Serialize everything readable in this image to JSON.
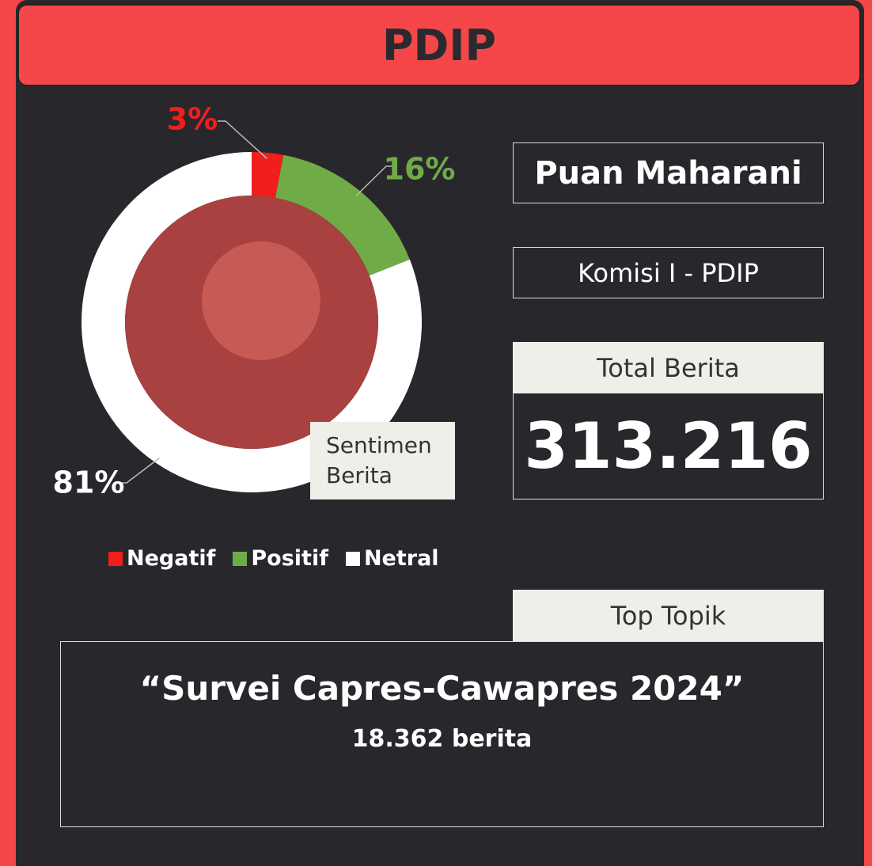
{
  "header": {
    "title": "PDIP"
  },
  "chart_data": {
    "type": "pie",
    "donut": true,
    "categories": [
      "Negatif",
      "Positif",
      "Netral"
    ],
    "values": [
      3,
      16,
      81
    ],
    "value_labels": [
      "3%",
      "16%",
      "81%"
    ],
    "colors": [
      "#f21d1d",
      "#6fac47",
      "#ffffff"
    ],
    "annotation": "Sentimen Berita"
  },
  "profile": {
    "name": "Puan Maharani",
    "role": "Komisi I - PDIP",
    "total_label": "Total Berita",
    "total_value": "313.216"
  },
  "top_topic": {
    "label": "Top Topik",
    "topic": "“Survei Capres-Cawapres 2024”",
    "count": "18.362 berita"
  }
}
